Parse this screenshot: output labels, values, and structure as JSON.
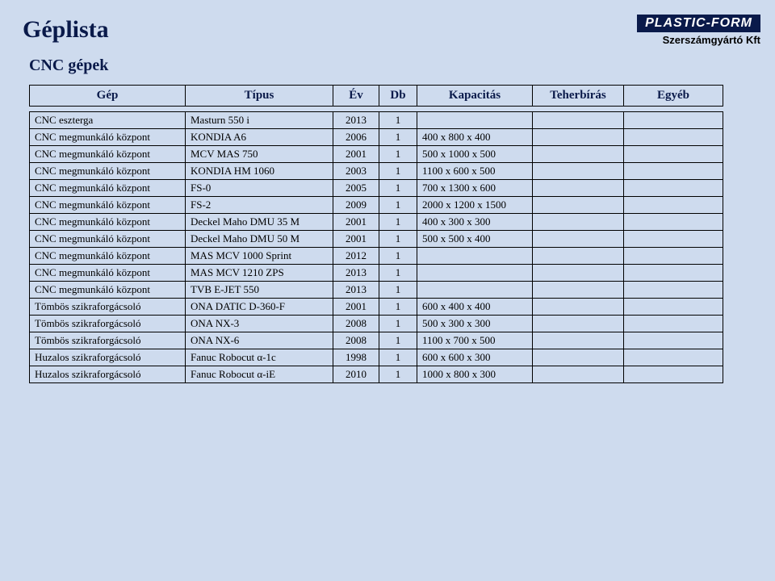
{
  "logo": {
    "brand": "PLASTIC-FORM",
    "subtitle": "Szerszámgyártó Kft"
  },
  "title": "Géplista",
  "subtitle": "CNC gépek",
  "columns": [
    "Gép",
    "Típus",
    "Év",
    "Db",
    "Kapacitás",
    "Teherbírás",
    "Egyéb"
  ],
  "rows": [
    [
      "CNC eszterga",
      "Masturn 550 i",
      "2013",
      "1",
      "",
      "",
      ""
    ],
    [
      "CNC megmunkáló központ",
      "KONDIA A6",
      "2006",
      "1",
      "400 x 800 x 400",
      "",
      ""
    ],
    [
      "CNC megmunkáló központ",
      "MCV MAS 750",
      "2001",
      "1",
      "500 x 1000 x 500",
      "",
      ""
    ],
    [
      "CNC megmunkáló központ",
      "KONDIA HM 1060",
      "2003",
      "1",
      "1100 x 600 x 500",
      "",
      ""
    ],
    [
      "CNC megmunkáló központ",
      "FS-0",
      "2005",
      "1",
      "700 x 1300 x 600",
      "",
      ""
    ],
    [
      "CNC megmunkáló központ",
      "FS-2",
      "2009",
      "1",
      "2000 x 1200 x 1500",
      "",
      ""
    ],
    [
      "CNC megmunkáló központ",
      "Deckel Maho DMU 35 M",
      "2001",
      "1",
      "400 x 300 x 300",
      "",
      ""
    ],
    [
      "CNC megmunkáló központ",
      "Deckel Maho DMU 50 M",
      "2001",
      "1",
      "500 x 500 x 400",
      "",
      ""
    ],
    [
      "CNC megmunkáló központ",
      "MAS MCV 1000 Sprint",
      "2012",
      "1",
      "",
      "",
      ""
    ],
    [
      "CNC megmunkáló központ",
      "MAS MCV 1210 ZPS",
      "2013",
      "1",
      "",
      "",
      ""
    ],
    [
      "CNC megmunkáló központ",
      "TVB E-JET 550",
      "2013",
      "1",
      "",
      "",
      ""
    ],
    [
      "Tömbös szikraforgácsoló",
      "ONA DATIC D-360-F",
      "2001",
      "1",
      "600 x 400 x 400",
      "",
      ""
    ],
    [
      "Tömbös szikraforgácsoló",
      "ONA NX-3",
      "2008",
      "1",
      "500 x 300 x 300",
      "",
      ""
    ],
    [
      "Tömbös szikraforgácsoló",
      "ONA NX-6",
      "2008",
      "1",
      "1100 x 700 x 500",
      "",
      ""
    ],
    [
      "Huzalos szikraforgácsoló",
      "Fanuc Robocut α-1c",
      "1998",
      "1",
      "600 x 600 x 300",
      "",
      ""
    ],
    [
      "Huzalos szikraforgácsoló",
      "Fanuc Robocut α-iE",
      "2010",
      "1",
      "1000 x 800 x 300",
      "",
      ""
    ]
  ]
}
